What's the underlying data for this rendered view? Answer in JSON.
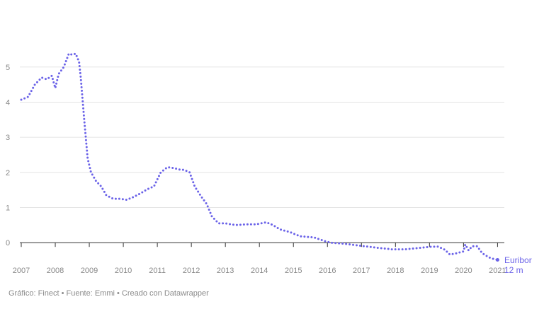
{
  "chart_data": {
    "type": "line",
    "xlabel": "",
    "ylabel": "",
    "x_ticks": [
      "2007",
      "2008",
      "2009",
      "2010",
      "2011",
      "2012",
      "2013",
      "2014",
      "2015",
      "2016",
      "2017",
      "2018",
      "2019",
      "2020",
      "2021"
    ],
    "y_ticks": [
      "0",
      "1",
      "2",
      "3",
      "4",
      "5"
    ],
    "ylim": [
      -0.6,
      5.8
    ],
    "xlim": [
      2007,
      2021.2
    ],
    "grid": true,
    "line_style": "dotted",
    "series": [
      {
        "name": "Euribor 12 m",
        "color": "#6b63e8",
        "x": [
          2007.0,
          2007.2,
          2007.4,
          2007.6,
          2007.75,
          2007.9,
          2008.0,
          2008.1,
          2008.25,
          2008.4,
          2008.5,
          2008.6,
          2008.7,
          2008.75,
          2008.85,
          2008.95,
          2009.05,
          2009.2,
          2009.35,
          2009.5,
          2009.7,
          2009.9,
          2010.1,
          2010.3,
          2010.5,
          2010.7,
          2010.9,
          2011.1,
          2011.3,
          2011.5,
          2011.65,
          2011.8,
          2011.95,
          2012.1,
          2012.3,
          2012.45,
          2012.6,
          2012.8,
          2013.0,
          2013.3,
          2013.6,
          2013.9,
          2014.2,
          2014.4,
          2014.6,
          2014.9,
          2015.2,
          2015.6,
          2015.9,
          2016.1,
          2016.5,
          2017.0,
          2017.5,
          2017.9,
          2018.3,
          2018.7,
          2019.0,
          2019.25,
          2019.45,
          2019.6,
          2019.8,
          2020.0,
          2020.05,
          2020.15,
          2020.25,
          2020.4,
          2020.55,
          2020.75,
          2020.9,
          2021.0
        ],
        "y": [
          4.07,
          4.15,
          4.5,
          4.7,
          4.65,
          4.75,
          4.4,
          4.8,
          5.0,
          5.38,
          5.35,
          5.38,
          5.15,
          4.7,
          3.5,
          2.4,
          2.0,
          1.75,
          1.6,
          1.35,
          1.25,
          1.25,
          1.22,
          1.3,
          1.4,
          1.52,
          1.6,
          2.0,
          2.15,
          2.12,
          2.08,
          2.07,
          2.0,
          1.6,
          1.3,
          1.1,
          0.75,
          0.55,
          0.55,
          0.5,
          0.52,
          0.52,
          0.58,
          0.5,
          0.38,
          0.3,
          0.18,
          0.15,
          0.05,
          0.0,
          -0.03,
          -0.09,
          -0.15,
          -0.19,
          -0.19,
          -0.15,
          -0.12,
          -0.11,
          -0.2,
          -0.34,
          -0.3,
          -0.25,
          -0.05,
          -0.22,
          -0.1,
          -0.1,
          -0.3,
          -0.42,
          -0.47,
          -0.49
        ]
      }
    ],
    "series_label_lines": [
      "Euribor",
      "12 m"
    ]
  },
  "footer": {
    "text": "Gráfico: Finect • Fuente: Emmi • Creado con Datawrapper"
  }
}
